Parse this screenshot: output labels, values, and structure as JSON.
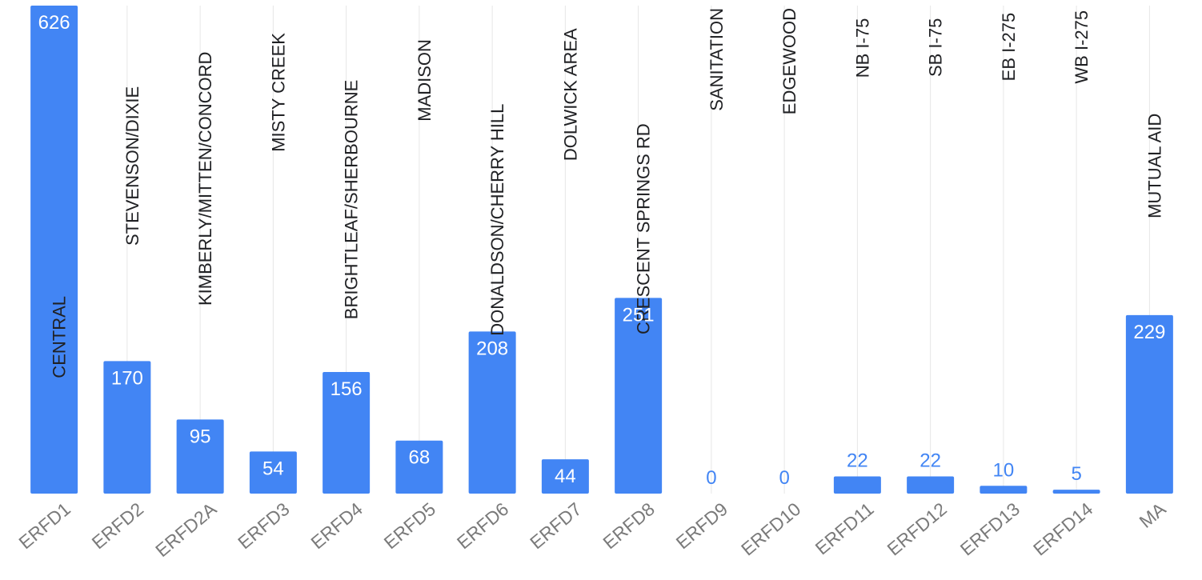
{
  "chart_data": {
    "type": "bar",
    "categories": [
      "ERFD1",
      "ERFD2",
      "ERFD2A",
      "ERFD3",
      "ERFD4",
      "ERFD5",
      "ERFD6",
      "ERFD7",
      "ERFD8",
      "ERFD9",
      "ERFD10",
      "ERFD11",
      "ERFD12",
      "ERFD13",
      "ERFD14",
      "MA"
    ],
    "annotations": [
      "CENTRAL",
      "STEVENSON/DIXIE",
      "KIMBERLY/MITTEN/CONCORD",
      "MISTY CREEK",
      "BRIGHTLEAF/SHERBOURNE",
      "MADISON",
      "DONALDSON/CHERRY HILL",
      "DOLWICK AREA",
      "CRESCENT SPRINGS RD",
      "SANITATION",
      "EDGEWOOD",
      "NB I-75",
      "SB I-75",
      "EB I-275",
      "WB I-275",
      "MUTUAL AID"
    ],
    "values": [
      626,
      170,
      95,
      54,
      156,
      68,
      208,
      44,
      251,
      0,
      0,
      22,
      22,
      10,
      5,
      229
    ],
    "value_labels": [
      "626",
      "170",
      "95",
      "54",
      "156",
      "68",
      "208",
      "44",
      "251",
      "0",
      "0",
      "22",
      "22",
      "10",
      "5",
      "229"
    ],
    "ylim": [
      0,
      626
    ],
    "title": "",
    "xlabel": "",
    "ylabel": "",
    "grid": "vertical",
    "legend": "none",
    "bar_color": "#4285f4",
    "label_inside_color": "#ffffff",
    "label_outside_color": "#4285f4",
    "tick_color": "#7a7a7a",
    "annotation_color": "#202124"
  }
}
